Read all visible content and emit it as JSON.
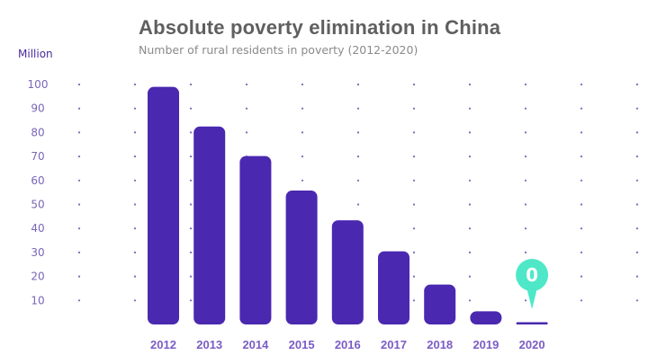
{
  "chart_data": {
    "type": "bar",
    "title": "Absolute poverty elimination in China",
    "subtitle": "Number of rural residents in poverty (2012-2020)",
    "ylabel": "Million",
    "xlabel": "",
    "categories": [
      "2012",
      "2013",
      "2014",
      "2015",
      "2016",
      "2017",
      "2018",
      "2019",
      "2020"
    ],
    "values": [
      99,
      82.5,
      70.2,
      55.8,
      43.4,
      30.5,
      16.6,
      5.5,
      0
    ],
    "yticks": [
      10,
      20,
      30,
      40,
      50,
      60,
      70,
      80,
      90,
      100
    ],
    "ylim": [
      0,
      100
    ],
    "grid": "dotted",
    "annotation": {
      "category": "2020",
      "label": "0"
    },
    "colors": {
      "bar": "#4a28b0",
      "annotation": "#4ee8c8",
      "tick_text": "#7a66b8",
      "year_text": "#7a5cc4",
      "grid_dot": "#7a66b8"
    }
  }
}
